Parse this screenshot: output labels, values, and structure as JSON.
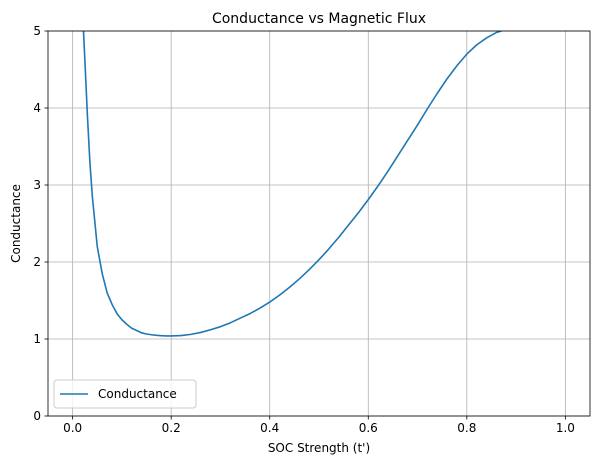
{
  "chart_data": {
    "type": "line",
    "title": "Conductance vs Magnetic Flux",
    "xlabel": "SOC Strength (t')",
    "ylabel": "Conductance",
    "xlim": [
      -0.05,
      1.05
    ],
    "ylim": [
      0,
      5
    ],
    "xticks": [
      0.0,
      0.2,
      0.4,
      0.6,
      0.8,
      1.0
    ],
    "xtick_labels": [
      "0.0",
      "0.2",
      "0.4",
      "0.6",
      "0.8",
      "1.0"
    ],
    "yticks": [
      0,
      1,
      2,
      3,
      4,
      5
    ],
    "ytick_labels": [
      "0",
      "1",
      "2",
      "3",
      "4",
      "5"
    ],
    "grid": true,
    "legend_position": "lower-left",
    "series": [
      {
        "name": "Conductance",
        "color": "#1f77b4",
        "x": [
          0.022,
          0.025,
          0.03,
          0.035,
          0.04,
          0.05,
          0.06,
          0.07,
          0.08,
          0.09,
          0.1,
          0.11,
          0.12,
          0.13,
          0.14,
          0.15,
          0.16,
          0.17,
          0.18,
          0.19,
          0.2,
          0.22,
          0.24,
          0.26,
          0.28,
          0.3,
          0.32,
          0.34,
          0.36,
          0.38,
          0.4,
          0.42,
          0.44,
          0.46,
          0.48,
          0.5,
          0.52,
          0.54,
          0.56,
          0.58,
          0.6,
          0.62,
          0.64,
          0.66,
          0.68,
          0.7,
          0.72,
          0.74,
          0.76,
          0.78,
          0.8,
          0.82,
          0.84,
          0.86,
          0.87
        ],
        "y": [
          5.0,
          4.6,
          3.9,
          3.3,
          2.85,
          2.2,
          1.85,
          1.6,
          1.45,
          1.33,
          1.25,
          1.19,
          1.14,
          1.11,
          1.08,
          1.065,
          1.055,
          1.048,
          1.043,
          1.04,
          1.04,
          1.045,
          1.06,
          1.085,
          1.12,
          1.16,
          1.21,
          1.27,
          1.33,
          1.4,
          1.48,
          1.57,
          1.67,
          1.78,
          1.9,
          2.03,
          2.17,
          2.32,
          2.48,
          2.64,
          2.81,
          2.99,
          3.18,
          3.38,
          3.58,
          3.78,
          3.99,
          4.19,
          4.38,
          4.55,
          4.7,
          4.82,
          4.91,
          4.98,
          5.0
        ]
      }
    ]
  }
}
